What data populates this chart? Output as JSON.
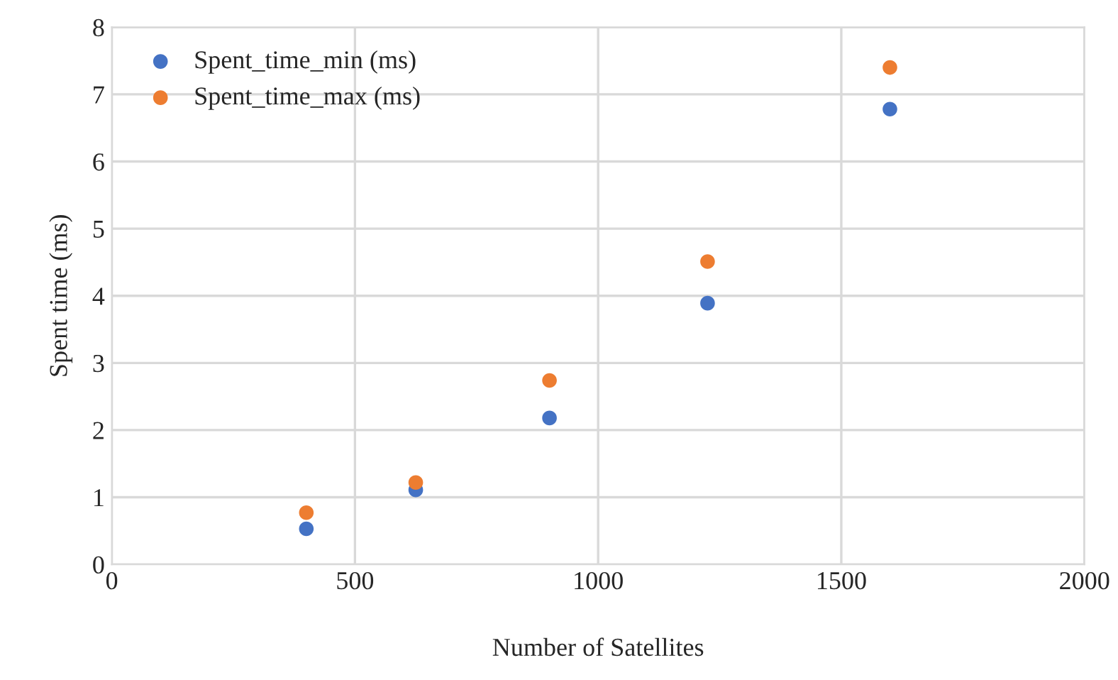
{
  "chart_data": {
    "type": "scatter",
    "xlabel": "Number of Satellites",
    "ylabel": "Spent time (ms)",
    "x": [
      400,
      625,
      900,
      1225,
      1600
    ],
    "series": [
      {
        "name": "Spent_time_min (ms)",
        "color": "#4472c4",
        "values": [
          0.53,
          1.11,
          2.18,
          3.89,
          6.78
        ]
      },
      {
        "name": "Spent_time_max (ms)",
        "color": "#ed7d31",
        "values": [
          0.77,
          1.22,
          2.74,
          4.51,
          7.4
        ]
      }
    ],
    "xlim": [
      0,
      2000
    ],
    "xticks": [
      0,
      500,
      1000,
      1500,
      2000
    ],
    "ylim": [
      0,
      8
    ],
    "yticks": [
      0,
      1,
      2,
      3,
      4,
      5,
      6,
      7,
      8
    ],
    "grid": true,
    "legend": "top left"
  }
}
